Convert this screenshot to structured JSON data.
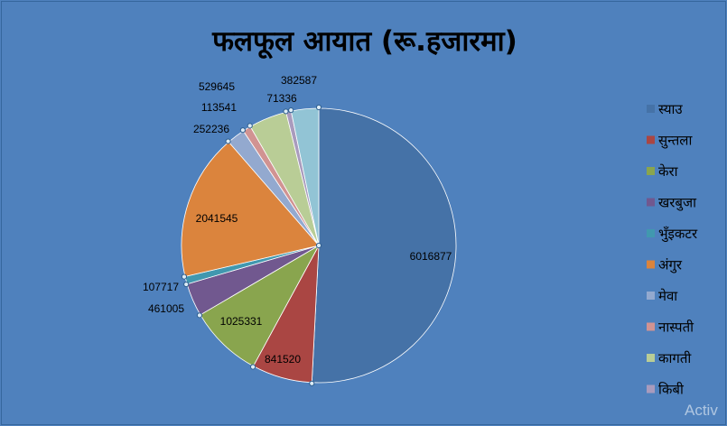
{
  "chart_data": {
    "type": "pie",
    "title": "फलफूल आयात (रू.हजारमा)",
    "categories": [
      "स्याउ",
      "सुन्तला",
      "केरा",
      "खरबुजा",
      "भुँइकटर",
      "अंगुर",
      "मेवा",
      "नास्पती",
      "कागती",
      "किबी"
    ],
    "values": [
      6016877,
      841520,
      1025331,
      461005,
      107717,
      2041545,
      252236,
      113541,
      529645,
      71336
    ],
    "value_labels": [
      "6016877",
      "841520",
      "1025331",
      "461005",
      "107717",
      "2041545",
      "252236",
      "113541",
      "529645",
      "71336"
    ],
    "extra_label": "382587",
    "colors": [
      "#4572a7",
      "#aa4643",
      "#89a54e",
      "#71588f",
      "#4198af",
      "#db843d",
      "#93a9cf",
      "#d19392",
      "#b9cd96",
      "#a99bbd",
      "#92c4d5"
    ],
    "legend_position": "right",
    "background": "#4f81bd"
  },
  "watermark": {
    "text": "Activ"
  }
}
